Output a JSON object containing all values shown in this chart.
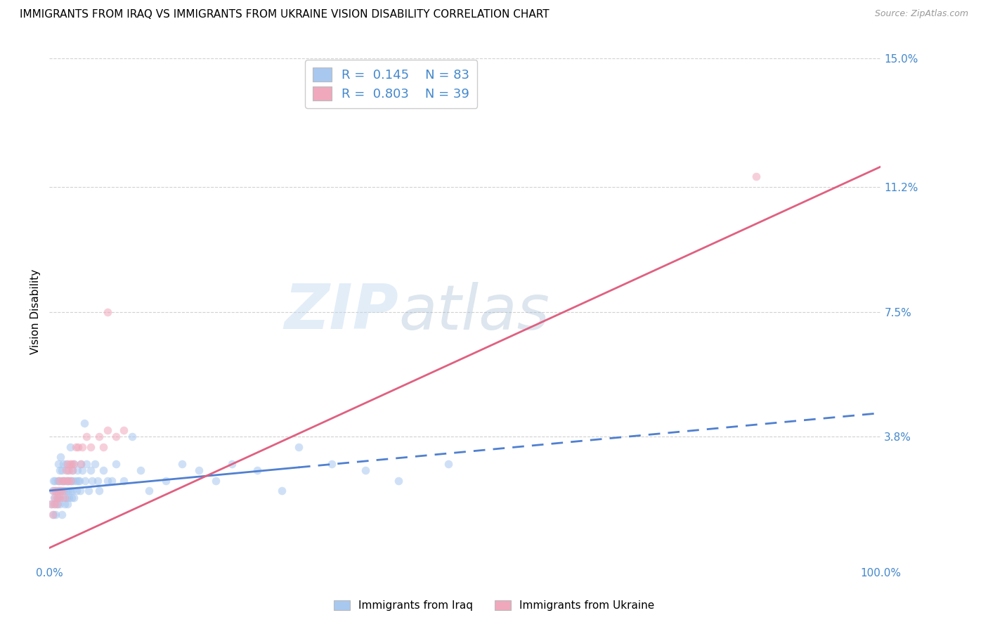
{
  "title": "IMMIGRANTS FROM IRAQ VS IMMIGRANTS FROM UKRAINE VISION DISABILITY CORRELATION CHART",
  "source": "Source: ZipAtlas.com",
  "ylabel": "Vision Disability",
  "xlim": [
    0,
    1.0
  ],
  "ylim": [
    0,
    0.15
  ],
  "yticks": [
    0.038,
    0.075,
    0.112,
    0.15
  ],
  "ytick_labels": [
    "3.8%",
    "7.5%",
    "11.2%",
    "15.0%"
  ],
  "legend_iraq_r": "0.145",
  "legend_iraq_n": "83",
  "legend_ukraine_r": "0.803",
  "legend_ukraine_n": "39",
  "color_iraq": "#a8c8f0",
  "color_ukraine": "#f0a8bc",
  "color_iraq_line": "#5080d0",
  "color_ukraine_line": "#e06080",
  "color_axis_labels": "#4488cc",
  "watermark_zip": "ZIP",
  "watermark_atlas": "atlas",
  "background_color": "#ffffff",
  "grid_color": "#cccccc",
  "title_fontsize": 11,
  "label_fontsize": 11,
  "tick_fontsize": 11,
  "iraq_x": [
    0.003,
    0.004,
    0.005,
    0.005,
    0.006,
    0.007,
    0.007,
    0.008,
    0.008,
    0.009,
    0.01,
    0.01,
    0.011,
    0.011,
    0.012,
    0.012,
    0.013,
    0.013,
    0.014,
    0.014,
    0.015,
    0.015,
    0.016,
    0.016,
    0.017,
    0.018,
    0.018,
    0.019,
    0.02,
    0.02,
    0.021,
    0.021,
    0.022,
    0.022,
    0.023,
    0.024,
    0.024,
    0.025,
    0.025,
    0.026,
    0.027,
    0.028,
    0.028,
    0.029,
    0.03,
    0.03,
    0.032,
    0.033,
    0.034,
    0.035,
    0.036,
    0.037,
    0.038,
    0.04,
    0.042,
    0.043,
    0.045,
    0.047,
    0.05,
    0.052,
    0.055,
    0.058,
    0.06,
    0.065,
    0.07,
    0.075,
    0.08,
    0.09,
    0.1,
    0.11,
    0.12,
    0.14,
    0.16,
    0.18,
    0.2,
    0.22,
    0.25,
    0.28,
    0.3,
    0.34,
    0.38,
    0.42,
    0.48
  ],
  "iraq_y": [
    0.018,
    0.022,
    0.015,
    0.025,
    0.02,
    0.018,
    0.025,
    0.015,
    0.022,
    0.02,
    0.025,
    0.018,
    0.03,
    0.022,
    0.025,
    0.02,
    0.028,
    0.018,
    0.032,
    0.022,
    0.028,
    0.015,
    0.025,
    0.02,
    0.03,
    0.022,
    0.025,
    0.018,
    0.03,
    0.022,
    0.025,
    0.02,
    0.028,
    0.018,
    0.022,
    0.025,
    0.02,
    0.035,
    0.022,
    0.025,
    0.02,
    0.028,
    0.022,
    0.025,
    0.03,
    0.02,
    0.025,
    0.022,
    0.028,
    0.025,
    0.025,
    0.022,
    0.03,
    0.028,
    0.042,
    0.025,
    0.03,
    0.022,
    0.028,
    0.025,
    0.03,
    0.025,
    0.022,
    0.028,
    0.025,
    0.025,
    0.03,
    0.025,
    0.038,
    0.028,
    0.022,
    0.025,
    0.03,
    0.028,
    0.025,
    0.03,
    0.028,
    0.022,
    0.035,
    0.03,
    0.028,
    0.025,
    0.03
  ],
  "ukraine_x": [
    0.003,
    0.004,
    0.005,
    0.006,
    0.007,
    0.008,
    0.009,
    0.01,
    0.011,
    0.012,
    0.013,
    0.014,
    0.015,
    0.016,
    0.018,
    0.019,
    0.02,
    0.021,
    0.022,
    0.023,
    0.024,
    0.025,
    0.026,
    0.027,
    0.028,
    0.03,
    0.032,
    0.035,
    0.038,
    0.04,
    0.045,
    0.05,
    0.06,
    0.065,
    0.07,
    0.08,
    0.09,
    0.07,
    0.85
  ],
  "ukraine_y": [
    0.018,
    0.015,
    0.022,
    0.018,
    0.02,
    0.022,
    0.018,
    0.02,
    0.022,
    0.025,
    0.02,
    0.022,
    0.025,
    0.022,
    0.025,
    0.02,
    0.028,
    0.025,
    0.03,
    0.025,
    0.028,
    0.03,
    0.025,
    0.03,
    0.028,
    0.03,
    0.035,
    0.035,
    0.03,
    0.035,
    0.038,
    0.035,
    0.038,
    0.035,
    0.04,
    0.038,
    0.04,
    0.075,
    0.115
  ],
  "iraq_line_x": [
    0.0,
    1.0
  ],
  "iraq_line_y": [
    0.022,
    0.045
  ],
  "ukraine_line_x": [
    0.0,
    1.0
  ],
  "ukraine_line_y": [
    0.005,
    0.118
  ],
  "marker_size": 70,
  "alpha": 0.55
}
